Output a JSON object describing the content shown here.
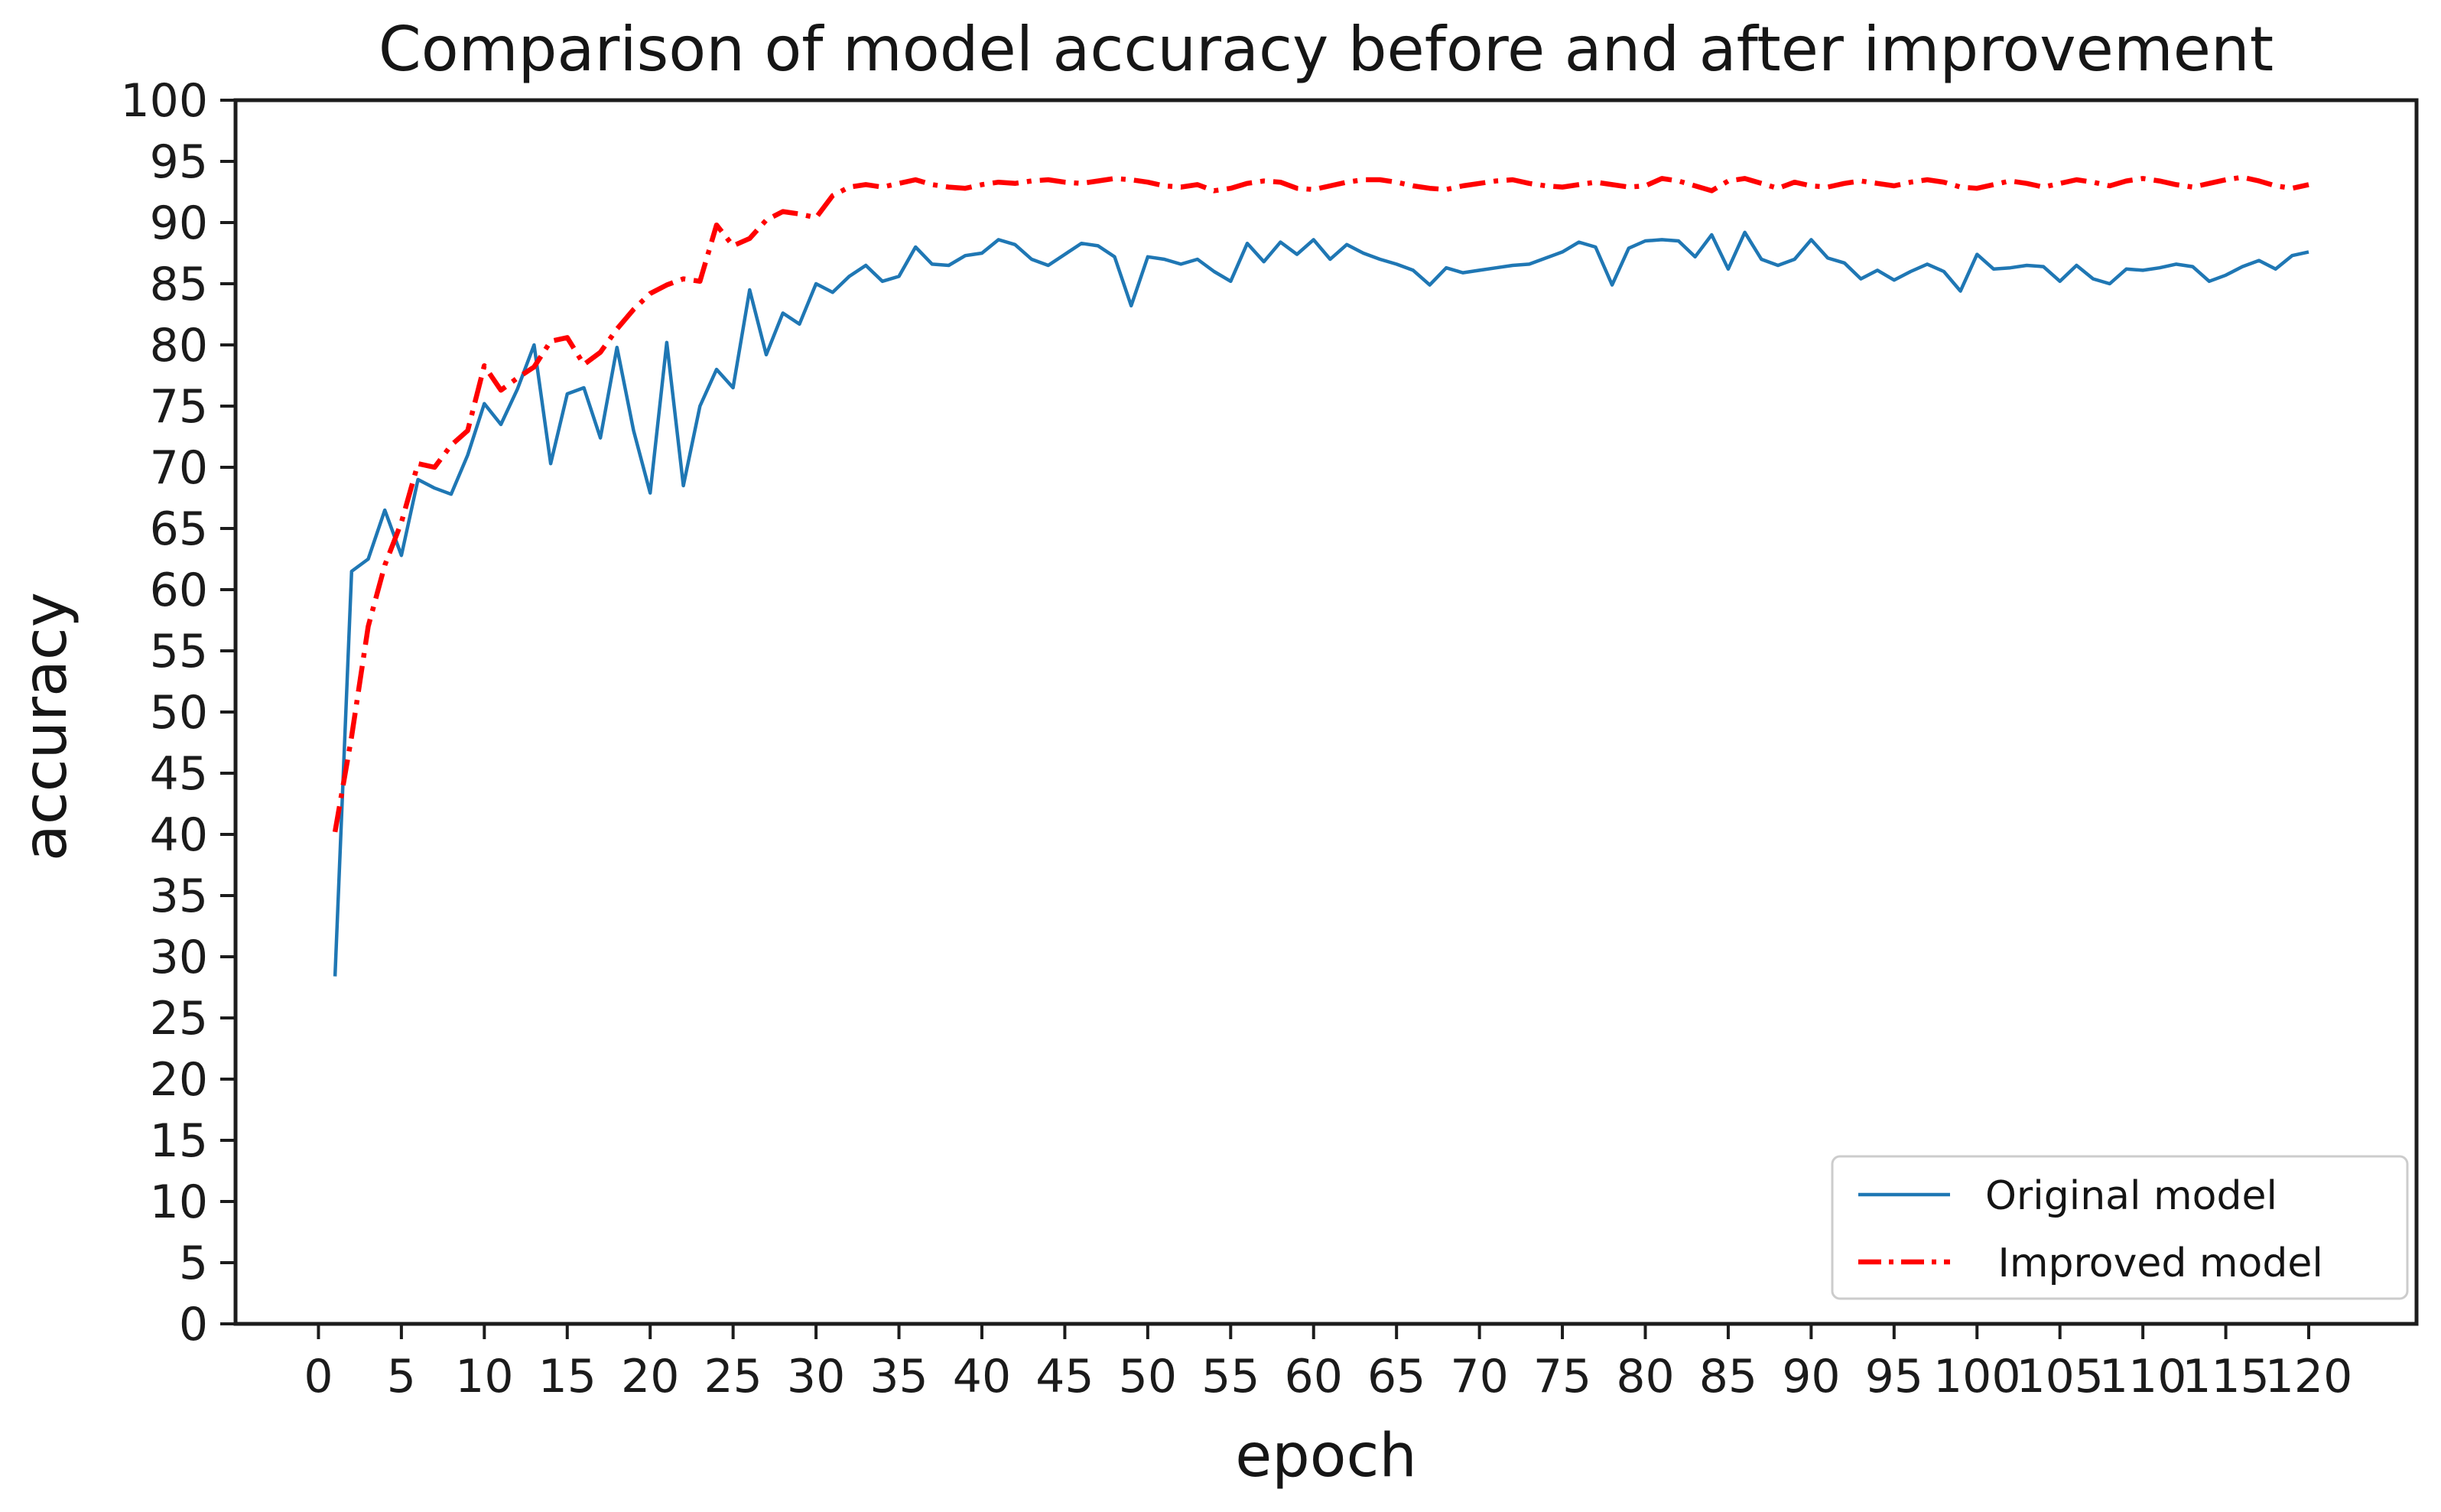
{
  "chart_data": {
    "type": "line",
    "title": "Comparison of model accuracy before and after improvement",
    "xlabel": "epoch",
    "ylabel": "accuracy",
    "xlim": [
      -5,
      126.5
    ],
    "ylim": [
      0,
      100
    ],
    "xticks": [
      0,
      5,
      10,
      15,
      20,
      25,
      30,
      35,
      40,
      45,
      50,
      55,
      60,
      65,
      70,
      75,
      80,
      85,
      90,
      95,
      100,
      105,
      110,
      115,
      120
    ],
    "yticks": [
      0,
      5,
      10,
      15,
      20,
      25,
      30,
      35,
      40,
      45,
      50,
      55,
      60,
      65,
      70,
      75,
      80,
      85,
      90,
      95,
      100
    ],
    "grid": false,
    "legend": {
      "position": "lower right",
      "border_color": "#cccccc",
      "background": "#ffffff"
    },
    "x_start": 1,
    "x_step": 1,
    "x": [
      1,
      2,
      3,
      4,
      5,
      6,
      7,
      8,
      9,
      10,
      11,
      12,
      13,
      14,
      15,
      16,
      17,
      18,
      19,
      20,
      21,
      22,
      23,
      24,
      25,
      26,
      27,
      28,
      29,
      30,
      31,
      32,
      33,
      34,
      35,
      36,
      37,
      38,
      39,
      40,
      41,
      42,
      43,
      44,
      45,
      46,
      47,
      48,
      49,
      50,
      51,
      52,
      53,
      54,
      55,
      56,
      57,
      58,
      59,
      60,
      61,
      62,
      63,
      64,
      65,
      66,
      67,
      68,
      69,
      70,
      71,
      72,
      73,
      74,
      75,
      76,
      77,
      78,
      79,
      80,
      81,
      82,
      83,
      84,
      85,
      86,
      87,
      88,
      89,
      90,
      91,
      92,
      93,
      94,
      95,
      96,
      97,
      98,
      99,
      100,
      101,
      102,
      103,
      104,
      105,
      106,
      107,
      108,
      109,
      110,
      111,
      112,
      113,
      114,
      115,
      116,
      117,
      118,
      119,
      120
    ],
    "series": [
      {
        "name": "Original model",
        "color": "#1f77b4",
        "line_style": "solid",
        "line_width": 4.5,
        "values": [
          28.4,
          61.5,
          62.5,
          66.5,
          62.8,
          69.0,
          68.3,
          67.8,
          71.0,
          75.2,
          73.5,
          76.4,
          80.0,
          70.3,
          76.0,
          76.5,
          72.4,
          79.8,
          73.0,
          67.9,
          80.2,
          68.5,
          75.0,
          78.0,
          76.5,
          84.5,
          79.2,
          82.6,
          81.7,
          85.0,
          84.3,
          85.6,
          86.5,
          85.2,
          85.6,
          88.0,
          86.6,
          86.5,
          87.3,
          87.5,
          88.6,
          88.2,
          87.0,
          86.5,
          87.4,
          88.3,
          88.1,
          87.2,
          83.2,
          87.2,
          87.0,
          86.6,
          87.0,
          86.0,
          85.2,
          88.3,
          86.8,
          88.4,
          87.4,
          88.6,
          87.0,
          88.2,
          87.5,
          87.0,
          86.6,
          86.1,
          84.9,
          86.3,
          85.9,
          86.1,
          86.3,
          86.5,
          86.6,
          87.1,
          87.6,
          88.4,
          88.0,
          84.9,
          87.9,
          88.5,
          88.6,
          88.5,
          87.2,
          89.0,
          86.2,
          89.2,
          87.0,
          86.5,
          87.0,
          88.6,
          87.1,
          86.7,
          85.4,
          86.1,
          85.3,
          86.0,
          86.6,
          86.0,
          84.4,
          87.4,
          86.2,
          86.3,
          86.5,
          86.4,
          85.2,
          86.5,
          85.4,
          85.0,
          86.2,
          86.1,
          86.3,
          86.6,
          86.4,
          85.2,
          85.7,
          86.4,
          86.9,
          86.2,
          87.3,
          87.6
        ]
      },
      {
        "name": " Improved model",
        "color": "#ff0000",
        "line_style": "dashdot",
        "line_width": 6.5,
        "values": [
          40.2,
          48.0,
          57.0,
          62.0,
          65.5,
          70.3,
          70.0,
          71.8,
          73.0,
          78.3,
          76.3,
          77.3,
          78.2,
          80.3,
          80.6,
          78.4,
          79.4,
          81.3,
          82.9,
          84.2,
          84.9,
          85.4,
          85.2,
          89.8,
          88.1,
          88.7,
          90.2,
          90.9,
          90.7,
          90.4,
          92.2,
          92.9,
          93.1,
          92.9,
          93.2,
          93.5,
          93.1,
          92.9,
          92.8,
          93.1,
          93.3,
          93.2,
          93.4,
          93.5,
          93.3,
          93.2,
          93.4,
          93.6,
          93.5,
          93.3,
          93.0,
          92.9,
          93.1,
          92.6,
          92.8,
          93.2,
          93.4,
          93.3,
          92.8,
          92.7,
          93.0,
          93.3,
          93.5,
          93.5,
          93.3,
          93.0,
          92.8,
          92.7,
          93.0,
          93.2,
          93.4,
          93.5,
          93.2,
          93.0,
          92.9,
          93.1,
          93.3,
          93.1,
          92.9,
          93.0,
          93.6,
          93.4,
          93.0,
          92.6,
          93.4,
          93.6,
          93.2,
          92.8,
          93.3,
          93.0,
          92.9,
          93.2,
          93.4,
          93.2,
          93.0,
          93.3,
          93.5,
          93.3,
          92.9,
          92.8,
          93.1,
          93.4,
          93.2,
          92.9,
          93.2,
          93.5,
          93.3,
          93.0,
          93.4,
          93.6,
          93.4,
          93.1,
          92.9,
          93.2,
          93.5,
          93.7,
          93.4,
          93.0,
          92.8,
          93.1
        ]
      }
    ]
  }
}
